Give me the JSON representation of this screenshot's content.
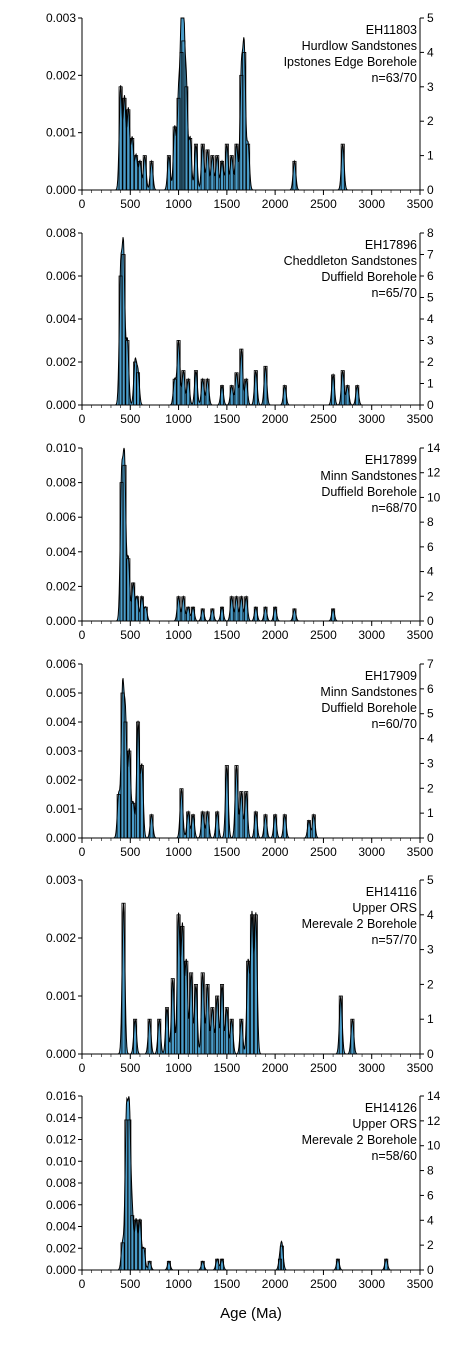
{
  "chart_data": [
    {
      "type": "bar",
      "ylim": [
        0,
        0.003
      ],
      "yticks": [
        "0.000",
        "0.001",
        "0.002",
        "0.003"
      ],
      "y2lim": [
        0,
        5
      ],
      "y2ticks": [
        "0",
        "1",
        "2",
        "3",
        "4",
        "5"
      ],
      "xlim": [
        0,
        3500
      ],
      "xticks": [
        "0",
        "500",
        "1000",
        "1500",
        "2000",
        "2500",
        "3000",
        "3500"
      ],
      "annotation": [
        "EH11803",
        "Hurdlow Sandstones",
        "Ipstones Edge Borehole",
        "n=63/70"
      ],
      "peaks": [
        [
          400,
          0.0018
        ],
        [
          440,
          0.0016
        ],
        [
          480,
          0.0014
        ],
        [
          520,
          0.0009
        ],
        [
          560,
          0.0006
        ],
        [
          600,
          0.0005
        ],
        [
          650,
          0.0006
        ],
        [
          720,
          0.0005
        ],
        [
          900,
          0.0006
        ],
        [
          960,
          0.0011
        ],
        [
          1000,
          0.0016
        ],
        [
          1030,
          0.0024
        ],
        [
          1050,
          0.0026
        ],
        [
          1080,
          0.0018
        ],
        [
          1120,
          0.0009
        ],
        [
          1180,
          0.0008
        ],
        [
          1250,
          0.0008
        ],
        [
          1300,
          0.0007
        ],
        [
          1350,
          0.0006
        ],
        [
          1400,
          0.0006
        ],
        [
          1450,
          0.0005
        ],
        [
          1500,
          0.0008
        ],
        [
          1550,
          0.0006
        ],
        [
          1600,
          0.0008
        ],
        [
          1650,
          0.002
        ],
        [
          1680,
          0.0024
        ],
        [
          1720,
          0.0008
        ],
        [
          2200,
          0.0005
        ],
        [
          2700,
          0.0008
        ]
      ]
    },
    {
      "type": "bar",
      "ylim": [
        0,
        0.008
      ],
      "yticks": [
        "0.000",
        "0.002",
        "0.004",
        "0.006",
        "0.008"
      ],
      "y2lim": [
        0,
        8
      ],
      "y2ticks": [
        "0",
        "1",
        "2",
        "3",
        "4",
        "5",
        "6",
        "7",
        "8"
      ],
      "xlim": [
        0,
        3500
      ],
      "xticks": [
        "0",
        "500",
        "1000",
        "1500",
        "2000",
        "2500",
        "3000",
        "3500"
      ],
      "annotation": [
        "EH17896",
        "Cheddleton Sandstones",
        "Duffield Borehole",
        "n=65/70"
      ],
      "peaks": [
        [
          400,
          0.006
        ],
        [
          430,
          0.007
        ],
        [
          470,
          0.003
        ],
        [
          550,
          0.002
        ],
        [
          580,
          0.0015
        ],
        [
          960,
          0.0012
        ],
        [
          1000,
          0.003
        ],
        [
          1050,
          0.0016
        ],
        [
          1100,
          0.0012
        ],
        [
          1180,
          0.0016
        ],
        [
          1250,
          0.0012
        ],
        [
          1300,
          0.0012
        ],
        [
          1450,
          0.0009
        ],
        [
          1550,
          0.0009
        ],
        [
          1600,
          0.0015
        ],
        [
          1650,
          0.0026
        ],
        [
          1700,
          0.0012
        ],
        [
          1800,
          0.0016
        ],
        [
          1900,
          0.0018
        ],
        [
          2100,
          0.0009
        ],
        [
          2600,
          0.0014
        ],
        [
          2700,
          0.0016
        ],
        [
          2750,
          0.0009
        ],
        [
          2850,
          0.0009
        ]
      ]
    },
    {
      "type": "bar",
      "ylim": [
        0,
        0.01
      ],
      "yticks": [
        "0.000",
        "0.002",
        "0.004",
        "0.006",
        "0.008",
        "0.010"
      ],
      "y2lim": [
        0,
        14
      ],
      "y2ticks": [
        "0",
        "2",
        "4",
        "6",
        "8",
        "10",
        "12",
        "14"
      ],
      "xlim": [
        0,
        3500
      ],
      "xticks": [
        "0",
        "500",
        "1000",
        "1500",
        "2000",
        "2500",
        "3000",
        "3500"
      ],
      "annotation": [
        "EH17899",
        "Minn Sandstones",
        "Duffield Borehole",
        "n=68/70"
      ],
      "peaks": [
        [
          410,
          0.008
        ],
        [
          440,
          0.009
        ],
        [
          480,
          0.0036
        ],
        [
          530,
          0.0022
        ],
        [
          570,
          0.0014
        ],
        [
          620,
          0.0014
        ],
        [
          660,
          0.0008
        ],
        [
          1000,
          0.0014
        ],
        [
          1050,
          0.0014
        ],
        [
          1100,
          0.0008
        ],
        [
          1150,
          0.0008
        ],
        [
          1250,
          0.0007
        ],
        [
          1350,
          0.0007
        ],
        [
          1450,
          0.0008
        ],
        [
          1550,
          0.0014
        ],
        [
          1600,
          0.0014
        ],
        [
          1650,
          0.0014
        ],
        [
          1700,
          0.0014
        ],
        [
          1800,
          0.0008
        ],
        [
          1900,
          0.0008
        ],
        [
          2000,
          0.0008
        ],
        [
          2200,
          0.0007
        ],
        [
          2600,
          0.0007
        ]
      ]
    },
    {
      "type": "bar",
      "ylim": [
        0,
        0.006
      ],
      "yticks": [
        "0.000",
        "0.001",
        "0.002",
        "0.003",
        "0.004",
        "0.005",
        "0.006"
      ],
      "y2lim": [
        0,
        7
      ],
      "y2ticks": [
        "0",
        "1",
        "2",
        "3",
        "4",
        "5",
        "6",
        "7"
      ],
      "xlim": [
        0,
        3500
      ],
      "xticks": [
        "0",
        "500",
        "1000",
        "1500",
        "2000",
        "2500",
        "3000",
        "3500"
      ],
      "annotation": [
        "EH17909",
        "Minn Sandstones",
        "Duffield Borehole",
        "n=60/70"
      ],
      "peaks": [
        [
          380,
          0.0015
        ],
        [
          420,
          0.005
        ],
        [
          450,
          0.004
        ],
        [
          490,
          0.003
        ],
        [
          530,
          0.0012
        ],
        [
          580,
          0.004
        ],
        [
          620,
          0.0025
        ],
        [
          720,
          0.0008
        ],
        [
          1030,
          0.0017
        ],
        [
          1100,
          0.0009
        ],
        [
          1150,
          0.0008
        ],
        [
          1250,
          0.0009
        ],
        [
          1300,
          0.0009
        ],
        [
          1400,
          0.0009
        ],
        [
          1500,
          0.0025
        ],
        [
          1600,
          0.0025
        ],
        [
          1650,
          0.0016
        ],
        [
          1700,
          0.0016
        ],
        [
          1800,
          0.0009
        ],
        [
          1900,
          0.0008
        ],
        [
          2000,
          0.0008
        ],
        [
          2100,
          0.0008
        ],
        [
          2350,
          0.0006
        ],
        [
          2400,
          0.0008
        ]
      ]
    },
    {
      "type": "bar",
      "ylim": [
        0,
        0.003
      ],
      "yticks": [
        "0.000",
        "0.001",
        "0.002",
        "0.003"
      ],
      "y2lim": [
        0,
        5
      ],
      "y2ticks": [
        "0",
        "1",
        "2",
        "3",
        "4",
        "5"
      ],
      "xlim": [
        0,
        3500
      ],
      "xticks": [
        "0",
        "500",
        "1000",
        "1500",
        "2000",
        "2500",
        "3000",
        "3500"
      ],
      "annotation": [
        "EH14116",
        "Upper ORS",
        "Merevale 2 Borehole",
        "n=57/70"
      ],
      "peaks": [
        [
          430,
          0.0026
        ],
        [
          550,
          0.0006
        ],
        [
          700,
          0.0006
        ],
        [
          800,
          0.0006
        ],
        [
          880,
          0.0008
        ],
        [
          940,
          0.0013
        ],
        [
          1000,
          0.0024
        ],
        [
          1040,
          0.0022
        ],
        [
          1080,
          0.0016
        ],
        [
          1130,
          0.0014
        ],
        [
          1180,
          0.0012
        ],
        [
          1250,
          0.0014
        ],
        [
          1300,
          0.0012
        ],
        [
          1350,
          0.0008
        ],
        [
          1400,
          0.001
        ],
        [
          1450,
          0.0012
        ],
        [
          1500,
          0.0008
        ],
        [
          1550,
          0.0006
        ],
        [
          1650,
          0.0006
        ],
        [
          1720,
          0.0016
        ],
        [
          1760,
          0.0024
        ],
        [
          1800,
          0.0024
        ],
        [
          2680,
          0.001
        ],
        [
          2800,
          0.0006
        ]
      ]
    },
    {
      "type": "bar",
      "ylim": [
        0,
        0.016
      ],
      "yticks": [
        "0.000",
        "0.002",
        "0.004",
        "0.006",
        "0.008",
        "0.010",
        "0.012",
        "0.014",
        "0.016"
      ],
      "y2lim": [
        0,
        14
      ],
      "y2ticks": [
        "0",
        "2",
        "4",
        "6",
        "8",
        "10",
        "12",
        "14"
      ],
      "xlim": [
        0,
        3500
      ],
      "xticks": [
        "0",
        "500",
        "1000",
        "1500",
        "2000",
        "2500",
        "3000",
        "3500"
      ],
      "annotation": [
        "EH14126",
        "Upper ORS",
        "Merevale 2 Borehole",
        "n=58/60"
      ],
      "peaks": [
        [
          420,
          0.0025
        ],
        [
          460,
          0.0138
        ],
        [
          490,
          0.0138
        ],
        [
          520,
          0.005
        ],
        [
          560,
          0.0046
        ],
        [
          600,
          0.0046
        ],
        [
          640,
          0.002
        ],
        [
          700,
          0.0008
        ],
        [
          900,
          0.0008
        ],
        [
          1250,
          0.0008
        ],
        [
          1400,
          0.001
        ],
        [
          1450,
          0.001
        ],
        [
          2050,
          0.001
        ],
        [
          2070,
          0.0022
        ],
        [
          2650,
          0.001
        ],
        [
          3150,
          0.001
        ]
      ]
    }
  ],
  "xlabel": "Age (Ma)",
  "colors": {
    "fill": "#4a9cc9",
    "outline": "#000000",
    "bar": "#ffffff"
  }
}
